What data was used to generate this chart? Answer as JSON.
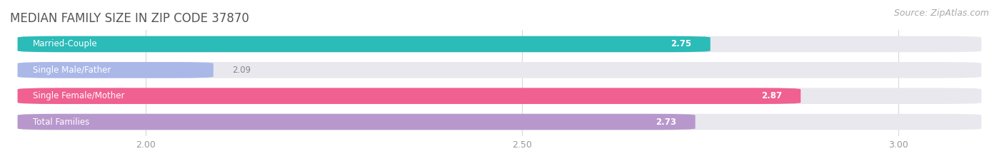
{
  "title": "MEDIAN FAMILY SIZE IN ZIP CODE 37870",
  "source": "Source: ZipAtlas.com",
  "categories": [
    "Married-Couple",
    "Single Male/Father",
    "Single Female/Mother",
    "Total Families"
  ],
  "values": [
    2.75,
    2.09,
    2.87,
    2.73
  ],
  "bar_colors": [
    "#2bbbb8",
    "#aab8e8",
    "#f06090",
    "#b898cc"
  ],
  "track_color": "#e8e8ee",
  "label_color": "#666666",
  "value_label_dark": "#888888",
  "xlim_left": 1.82,
  "xlim_right": 3.12,
  "xmin": 2.0,
  "xmax": 3.0,
  "xticks": [
    2.0,
    2.5,
    3.0
  ],
  "bar_height": 0.62,
  "bar_gap": 0.38,
  "figsize": [
    14.06,
    2.33
  ],
  "dpi": 100,
  "title_fontsize": 12,
  "source_fontsize": 9,
  "label_fontsize": 8.5,
  "value_fontsize": 8.5,
  "tick_fontsize": 9,
  "bg_color": "#ffffff",
  "grid_color": "#d8d8d8"
}
